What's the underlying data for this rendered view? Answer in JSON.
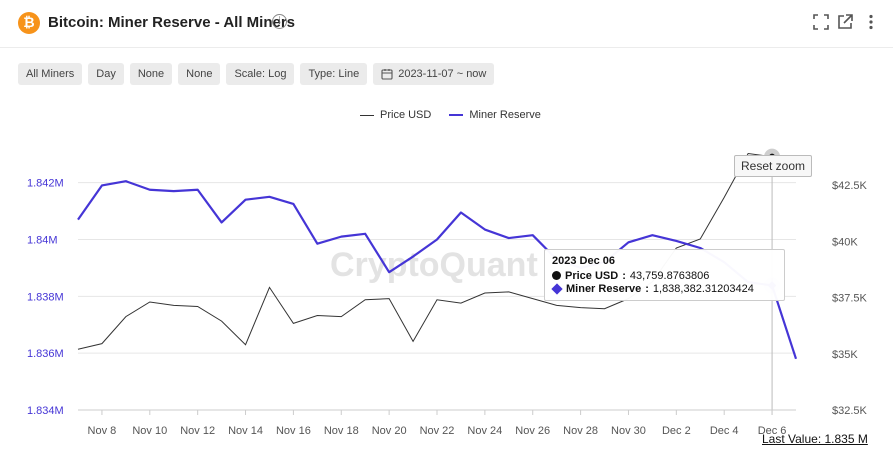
{
  "header": {
    "logo_glyph": "₿",
    "title": "Bitcoin: Miner Reserve - All Miners",
    "info_glyph": "i"
  },
  "toolbar": {
    "items": [
      "All Miners",
      "Day",
      "None",
      "None",
      "Scale: Log",
      "Type: Line"
    ],
    "date_range": "2023-11-07 ~ now"
  },
  "legend": {
    "price_label": "Price USD",
    "reserve_label": "Miner Reserve"
  },
  "watermark": "CryptoQuant",
  "reset_zoom_label": "Reset zoom",
  "tooltip": {
    "date": "2023 Dec 06",
    "price_label": "Price USD",
    "price_value": "43,759.8763806",
    "reserve_label": "Miner Reserve",
    "reserve_value": "1,838,382.31203424"
  },
  "last_value": "Last Value: 1.835 M",
  "colors": {
    "reserve": "#4535d6",
    "price": "#333333",
    "bitcoin": "#f7931a"
  },
  "chart_data": {
    "type": "line",
    "x": [
      "2023-11-07",
      "2023-11-08",
      "2023-11-09",
      "2023-11-10",
      "2023-11-11",
      "2023-11-12",
      "2023-11-13",
      "2023-11-14",
      "2023-11-15",
      "2023-11-16",
      "2023-11-17",
      "2023-11-18",
      "2023-11-19",
      "2023-11-20",
      "2023-11-21",
      "2023-11-22",
      "2023-11-23",
      "2023-11-24",
      "2023-11-25",
      "2023-11-26",
      "2023-11-27",
      "2023-11-28",
      "2023-11-29",
      "2023-11-30",
      "2023-12-01",
      "2023-12-02",
      "2023-12-03",
      "2023-12-04",
      "2023-12-05",
      "2023-12-06",
      "2023-12-07"
    ],
    "x_tick_labels": [
      "Nov 8",
      "Nov 10",
      "Nov 12",
      "Nov 14",
      "Nov 16",
      "Nov 18",
      "Nov 20",
      "Nov 22",
      "Nov 24",
      "Nov 26",
      "Nov 28",
      "Nov 30",
      "Dec 2",
      "Dec 4",
      "Dec 6"
    ],
    "series": [
      {
        "name": "Miner Reserve",
        "axis": "left",
        "values": [
          1840700,
          1841900,
          1842050,
          1841750,
          1841700,
          1841750,
          1840600,
          1841400,
          1841500,
          1841250,
          1839850,
          1840100,
          1840200,
          1838850,
          1839400,
          1840000,
          1840950,
          1840350,
          1840050,
          1840150,
          1839300,
          1839000,
          1839200,
          1839900,
          1840150,
          1839950,
          1839700,
          1839200,
          1838500,
          1838382,
          1835800
        ]
      },
      {
        "name": "Price USD",
        "axis": "right",
        "values": [
          35200,
          35450,
          36650,
          37300,
          37150,
          37100,
          36450,
          35400,
          37950,
          36350,
          36700,
          36650,
          37400,
          37450,
          35550,
          37400,
          37250,
          37700,
          37750,
          37450,
          37150,
          37050,
          37000,
          37450,
          38200,
          39700,
          40100,
          41950,
          43900,
          43760,
          43400
        ]
      }
    ],
    "y_left": {
      "ticks": [
        "1.834M",
        "1.836M",
        "1.838M",
        "1.84M",
        "1.842M"
      ],
      "range": [
        1834000,
        1843500
      ]
    },
    "y_right": {
      "ticks": [
        "$32.5K",
        "$35K",
        "$37.5K",
        "$40K",
        "$42.5K"
      ],
      "range": [
        32500,
        44500
      ]
    },
    "grid": true,
    "legend_position": "top-center"
  }
}
